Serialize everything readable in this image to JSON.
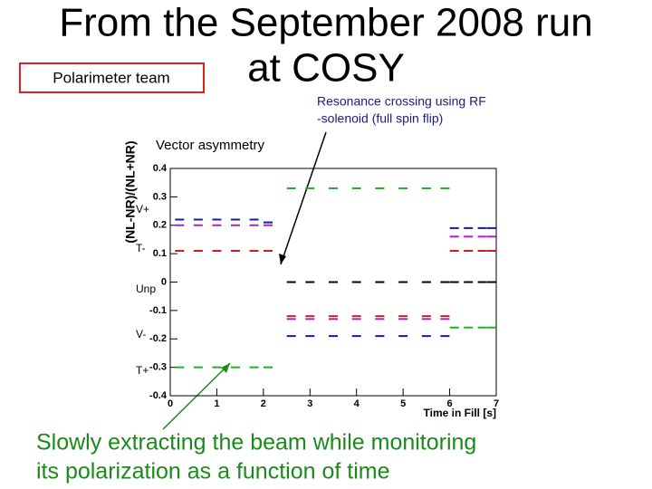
{
  "slide": {
    "title": [
      "From the September 2008 run",
      "at COSY"
    ],
    "team_label": "Polarimeter team",
    "resonance_note": [
      "Resonance crossing using RF",
      "-solenoid (full spin flip)"
    ],
    "plot_caption": "Vector asymmetry",
    "bottom_text": [
      "Slowly extracting the beam while monitoring",
      "its polarization as a function of time"
    ]
  },
  "chart_data": {
    "type": "scatter",
    "x_label": "Time in Fill [s]",
    "y_label": "(NL-NR)/(NL+NR)",
    "xlim": [
      0,
      7
    ],
    "xticks": [
      0,
      1,
      2,
      3,
      4,
      5,
      6,
      7
    ],
    "ylim": [
      -0.4,
      0.4
    ],
    "yticks": [
      0.4,
      0.3,
      0.2,
      0.1,
      0,
      -0.1,
      -0.2,
      -0.3,
      -0.4
    ],
    "series": [
      {
        "name": "V+",
        "color": "#1a1aa0",
        "x": [
          0.2,
          0.6,
          1.0,
          1.4,
          1.8,
          2.1,
          2.6,
          3.0,
          3.5,
          4.0,
          4.5,
          5.0,
          5.5,
          5.9,
          6.1,
          6.4,
          6.7,
          6.9
        ],
        "values": [
          0.22,
          0.22,
          0.22,
          0.22,
          0.22,
          0.21,
          -0.19,
          -0.19,
          -0.19,
          -0.19,
          -0.19,
          -0.19,
          -0.19,
          -0.19,
          0.19,
          0.19,
          0.19,
          0.19
        ]
      },
      {
        "name": "T-",
        "color": "#cc2020",
        "x": [
          0.2,
          0.6,
          1.0,
          1.4,
          1.8,
          2.1,
          2.6,
          3.0,
          3.5,
          4.0,
          4.5,
          5.0,
          5.5,
          5.9,
          6.1,
          6.4,
          6.7,
          6.9
        ],
        "values": [
          0.11,
          0.11,
          0.11,
          0.11,
          0.11,
          0.11,
          -0.12,
          -0.12,
          -0.12,
          -0.12,
          -0.12,
          -0.12,
          -0.12,
          -0.12,
          0.11,
          0.11,
          0.11,
          0.11
        ]
      },
      {
        "name": "Unp",
        "color": "#000000",
        "x": [
          2.6,
          3.0,
          3.5,
          4.0,
          4.5,
          5.0,
          5.5,
          5.9,
          6.1,
          6.4,
          6.7,
          6.9
        ],
        "values": [
          0,
          0,
          0,
          0,
          0,
          0,
          0,
          0,
          0,
          0,
          0,
          0
        ]
      },
      {
        "name": "V-",
        "color": "#b020c0",
        "x": [
          0.2,
          0.6,
          1.0,
          1.4,
          1.8,
          2.1,
          2.6,
          3.0,
          3.5,
          4.0,
          4.5,
          5.0,
          5.5,
          5.9,
          6.1,
          6.4,
          6.7,
          6.9
        ],
        "values": [
          0.2,
          0.2,
          0.2,
          0.2,
          0.2,
          0.2,
          -0.13,
          -0.13,
          -0.13,
          -0.13,
          -0.13,
          -0.13,
          -0.13,
          -0.13,
          0.16,
          0.16,
          0.16,
          0.16
        ]
      },
      {
        "name": "T+",
        "color": "#20b020",
        "x": [
          0.2,
          0.6,
          1.0,
          1.4,
          1.8,
          2.1,
          2.6,
          3.0,
          3.5,
          4.0,
          4.5,
          5.0,
          5.5,
          5.9,
          6.1,
          6.4,
          6.7,
          6.9
        ],
        "values": [
          -0.3,
          -0.3,
          -0.3,
          -0.3,
          -0.3,
          -0.3,
          0.33,
          0.33,
          0.33,
          0.33,
          0.33,
          0.33,
          0.33,
          0.33,
          -0.16,
          -0.16,
          -0.16,
          -0.16
        ]
      }
    ]
  }
}
